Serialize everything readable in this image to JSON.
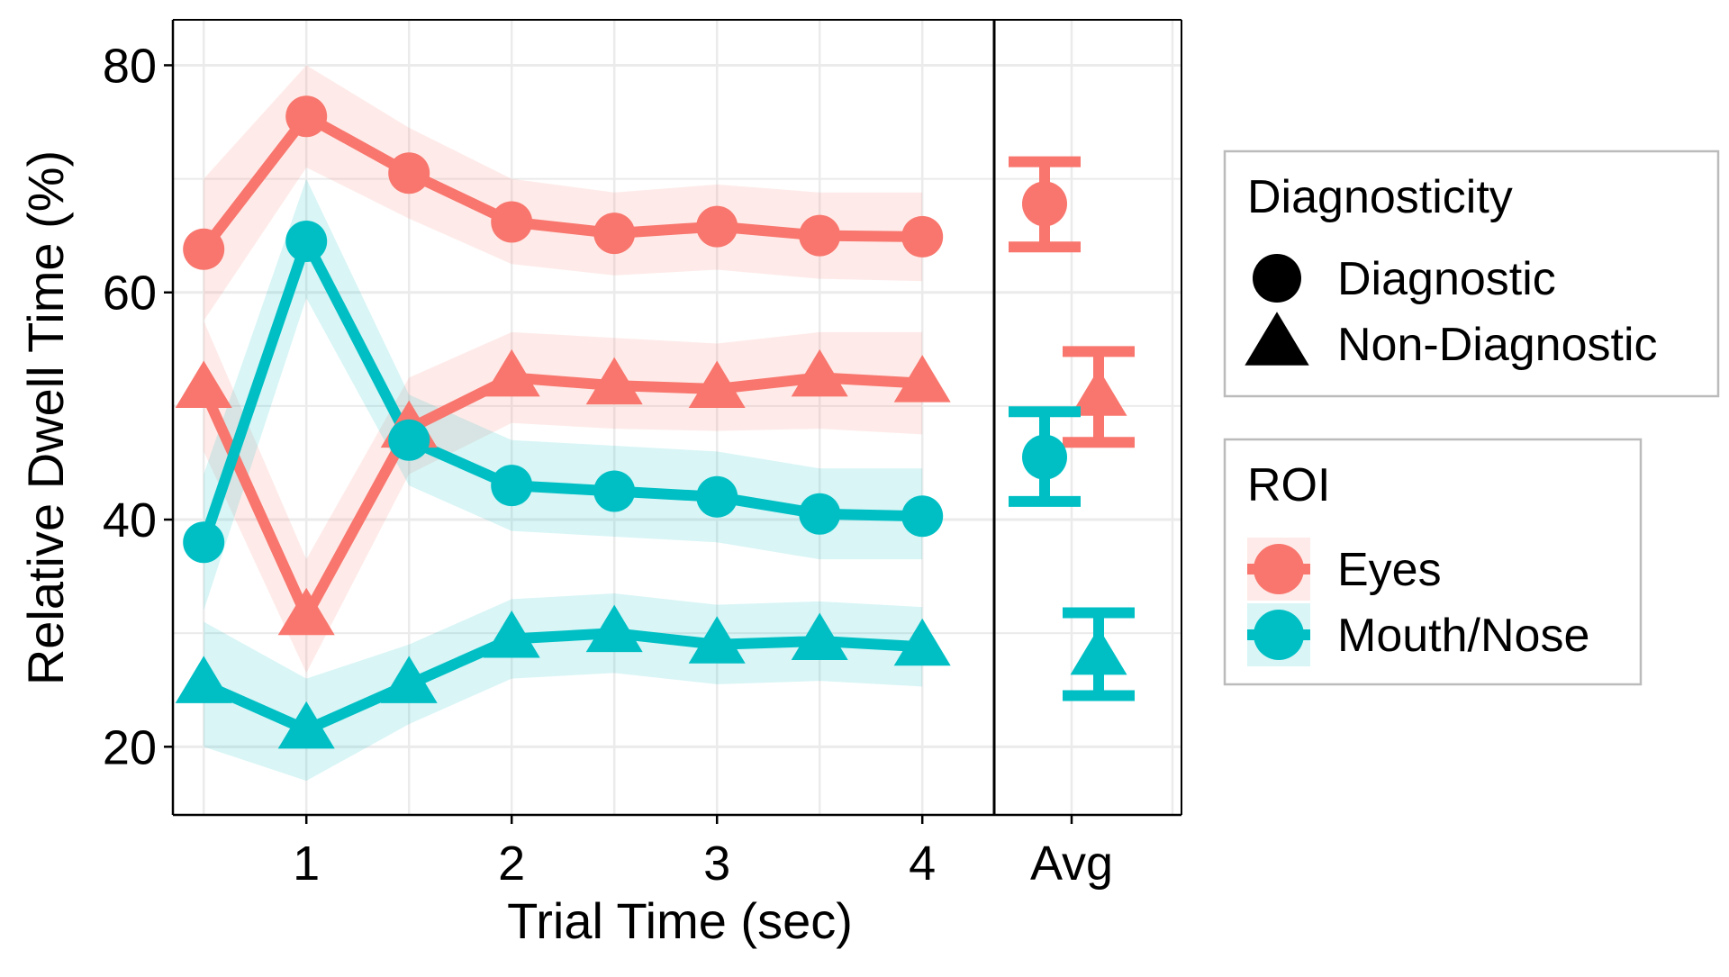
{
  "colors": {
    "eyes": "#F8766D",
    "mouth_nose": "#00BFC4",
    "grid": "#EBEBEB",
    "axis": "#000000"
  },
  "chart_data": {
    "type": "line",
    "xlabel": "Trial Time (sec)",
    "ylabel": "Relative Dwell Time (%)",
    "x_ticks": [
      "1",
      "2",
      "3",
      "4"
    ],
    "x_tick_values": [
      1,
      2,
      3,
      4
    ],
    "avg_label": "Avg",
    "y_ticks": [
      "20",
      "40",
      "60",
      "80"
    ],
    "y_tick_values": [
      20,
      40,
      60,
      80
    ],
    "xlim": [
      0.35,
      4.35
    ],
    "ylim": [
      14,
      84
    ],
    "grid": true,
    "x": [
      0.5,
      1,
      1.5,
      2,
      2.5,
      3,
      3.5,
      4
    ],
    "series": [
      {
        "roi": "Eyes",
        "diagnosticity": "Diagnostic",
        "color": "eyes",
        "shape": "circle",
        "values": [
          63.8,
          75.5,
          70.5,
          66.2,
          65.2,
          65.8,
          65.0,
          64.9
        ],
        "lower": [
          57.5,
          71.0,
          66.5,
          62.5,
          61.5,
          62.0,
          61.2,
          61.0
        ],
        "upper": [
          70.0,
          80.0,
          74.5,
          70.0,
          68.8,
          69.5,
          68.8,
          68.8
        ],
        "avg": 67.8,
        "avg_lower": 64.0,
        "avg_upper": 71.5
      },
      {
        "roi": "Eyes",
        "diagnosticity": "Non-Diagnostic",
        "color": "eyes",
        "shape": "triangle",
        "values": [
          51.5,
          31.5,
          48.0,
          52.5,
          51.8,
          51.5,
          52.5,
          52.0
        ],
        "lower": [
          46.0,
          26.5,
          44.0,
          48.5,
          48.0,
          47.8,
          48.0,
          47.5
        ],
        "upper": [
          57.5,
          36.5,
          52.5,
          56.5,
          56.0,
          55.5,
          56.5,
          56.5
        ],
        "avg": 50.8,
        "avg_lower": 46.8,
        "avg_upper": 54.8
      },
      {
        "roi": "Mouth/Nose",
        "diagnosticity": "Diagnostic",
        "color": "mouth_nose",
        "shape": "circle",
        "values": [
          38.0,
          64.5,
          47.0,
          43.0,
          42.5,
          42.0,
          40.5,
          40.3
        ],
        "lower": [
          32.0,
          59.5,
          43.0,
          39.0,
          38.5,
          38.0,
          36.5,
          36.5
        ],
        "upper": [
          44.0,
          70.0,
          51.0,
          47.0,
          46.5,
          46.0,
          44.5,
          44.5
        ],
        "avg": 45.5,
        "avg_lower": 41.6,
        "avg_upper": 49.5
      },
      {
        "roi": "Mouth/Nose",
        "diagnosticity": "Non-Diagnostic",
        "color": "mouth_nose",
        "shape": "triangle",
        "values": [
          25.5,
          21.5,
          25.5,
          29.5,
          30.0,
          29.0,
          29.3,
          28.8
        ],
        "lower": [
          20.0,
          17.0,
          22.0,
          26.0,
          26.5,
          25.5,
          25.8,
          25.3
        ],
        "upper": [
          31.0,
          26.0,
          29.0,
          33.0,
          33.5,
          32.5,
          32.8,
          32.3
        ],
        "avg": 28.0,
        "avg_lower": 24.5,
        "avg_upper": 31.8
      }
    ],
    "legends": [
      {
        "title": "Diagnosticity",
        "items": [
          {
            "label": "Diagnostic",
            "shape": "circle"
          },
          {
            "label": "Non-Diagnostic",
            "shape": "triangle"
          }
        ]
      },
      {
        "title": "ROI",
        "items": [
          {
            "label": "Eyes",
            "color": "eyes"
          },
          {
            "label": "Mouth/Nose",
            "color": "mouth_nose"
          }
        ]
      }
    ],
    "legend_position": "right"
  }
}
